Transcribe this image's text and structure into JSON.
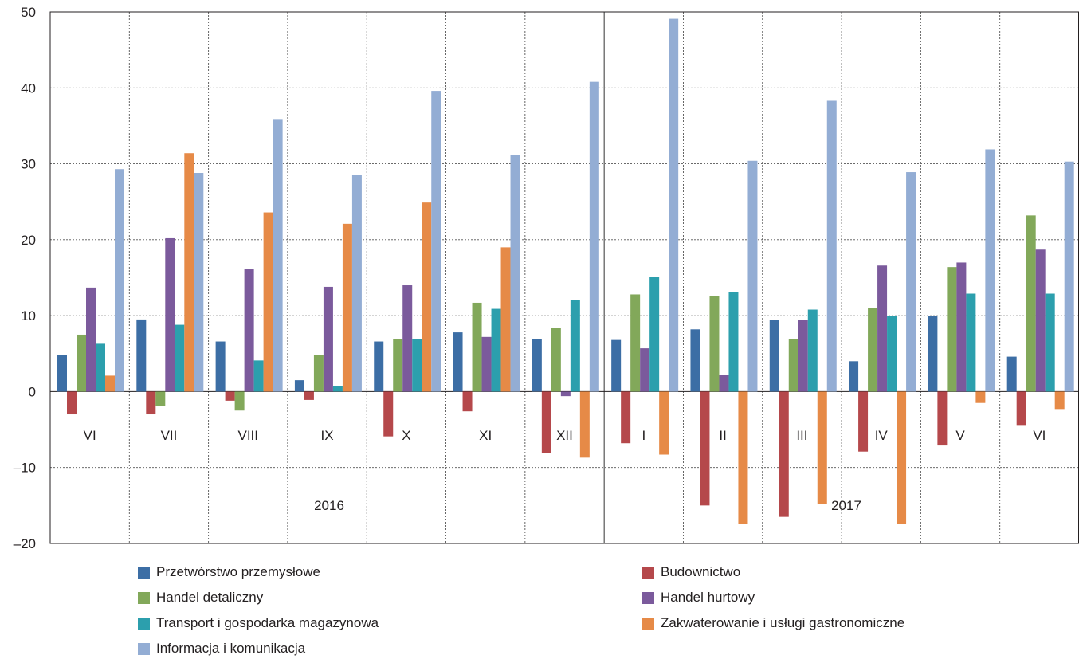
{
  "chart_data": {
    "type": "bar",
    "categories": [
      "VI",
      "VII",
      "VIII",
      "IX",
      "X",
      "XI",
      "XII",
      "I",
      "II",
      "III",
      "IV",
      "V",
      "VI"
    ],
    "year_labels": [
      "2016",
      "2017"
    ],
    "ylim": [
      -20,
      50
    ],
    "yticks": [
      "50",
      "40",
      "30",
      "20",
      "10",
      "0",
      "–10",
      "–20"
    ],
    "grid": true,
    "legend_position": "bottom",
    "series": [
      {
        "name": "Przetwórstwo przemysłowe",
        "color": "#3c6ea5",
        "values": [
          4.8,
          9.5,
          6.6,
          1.5,
          6.6,
          7.8,
          6.9,
          6.8,
          8.2,
          9.4,
          4.0,
          10.0,
          4.6
        ]
      },
      {
        "name": "Budownictwo",
        "color": "#b5484b",
        "values": [
          -3.0,
          -3.0,
          -1.2,
          -1.1,
          -5.9,
          -2.6,
          -8.1,
          -6.8,
          -15.0,
          -16.5,
          -7.9,
          -7.1,
          -4.4
        ]
      },
      {
        "name": "Handel detaliczny",
        "color": "#82a85a",
        "values": [
          7.5,
          -1.9,
          -2.5,
          4.8,
          6.9,
          11.7,
          8.4,
          12.8,
          12.6,
          6.9,
          11.0,
          16.4,
          23.2
        ]
      },
      {
        "name": "Handel hurtowy",
        "color": "#7b5a9c",
        "values": [
          13.7,
          20.2,
          16.1,
          13.8,
          14.0,
          7.2,
          -0.6,
          5.7,
          2.2,
          9.4,
          16.6,
          17.0,
          18.7
        ]
      },
      {
        "name": "Transport i gospodarka magazynowa",
        "color": "#2c9fad",
        "values": [
          6.3,
          8.8,
          4.1,
          0.7,
          6.9,
          10.9,
          12.1,
          15.1,
          13.1,
          10.8,
          10.0,
          12.9,
          12.9
        ]
      },
      {
        "name": "Zakwaterowanie i usługi gastronomiczne",
        "color": "#e68a47",
        "values": [
          2.1,
          31.4,
          23.6,
          22.1,
          24.9,
          19.0,
          -8.7,
          -8.3,
          -17.4,
          -14.8,
          -17.4,
          -1.5,
          -2.3
        ]
      },
      {
        "name": "Informacja i komunikacja",
        "color": "#93add4",
        "values": [
          29.3,
          28.8,
          35.9,
          28.5,
          39.6,
          31.2,
          40.8,
          49.1,
          30.4,
          38.3,
          28.9,
          31.9,
          30.3
        ]
      }
    ]
  }
}
